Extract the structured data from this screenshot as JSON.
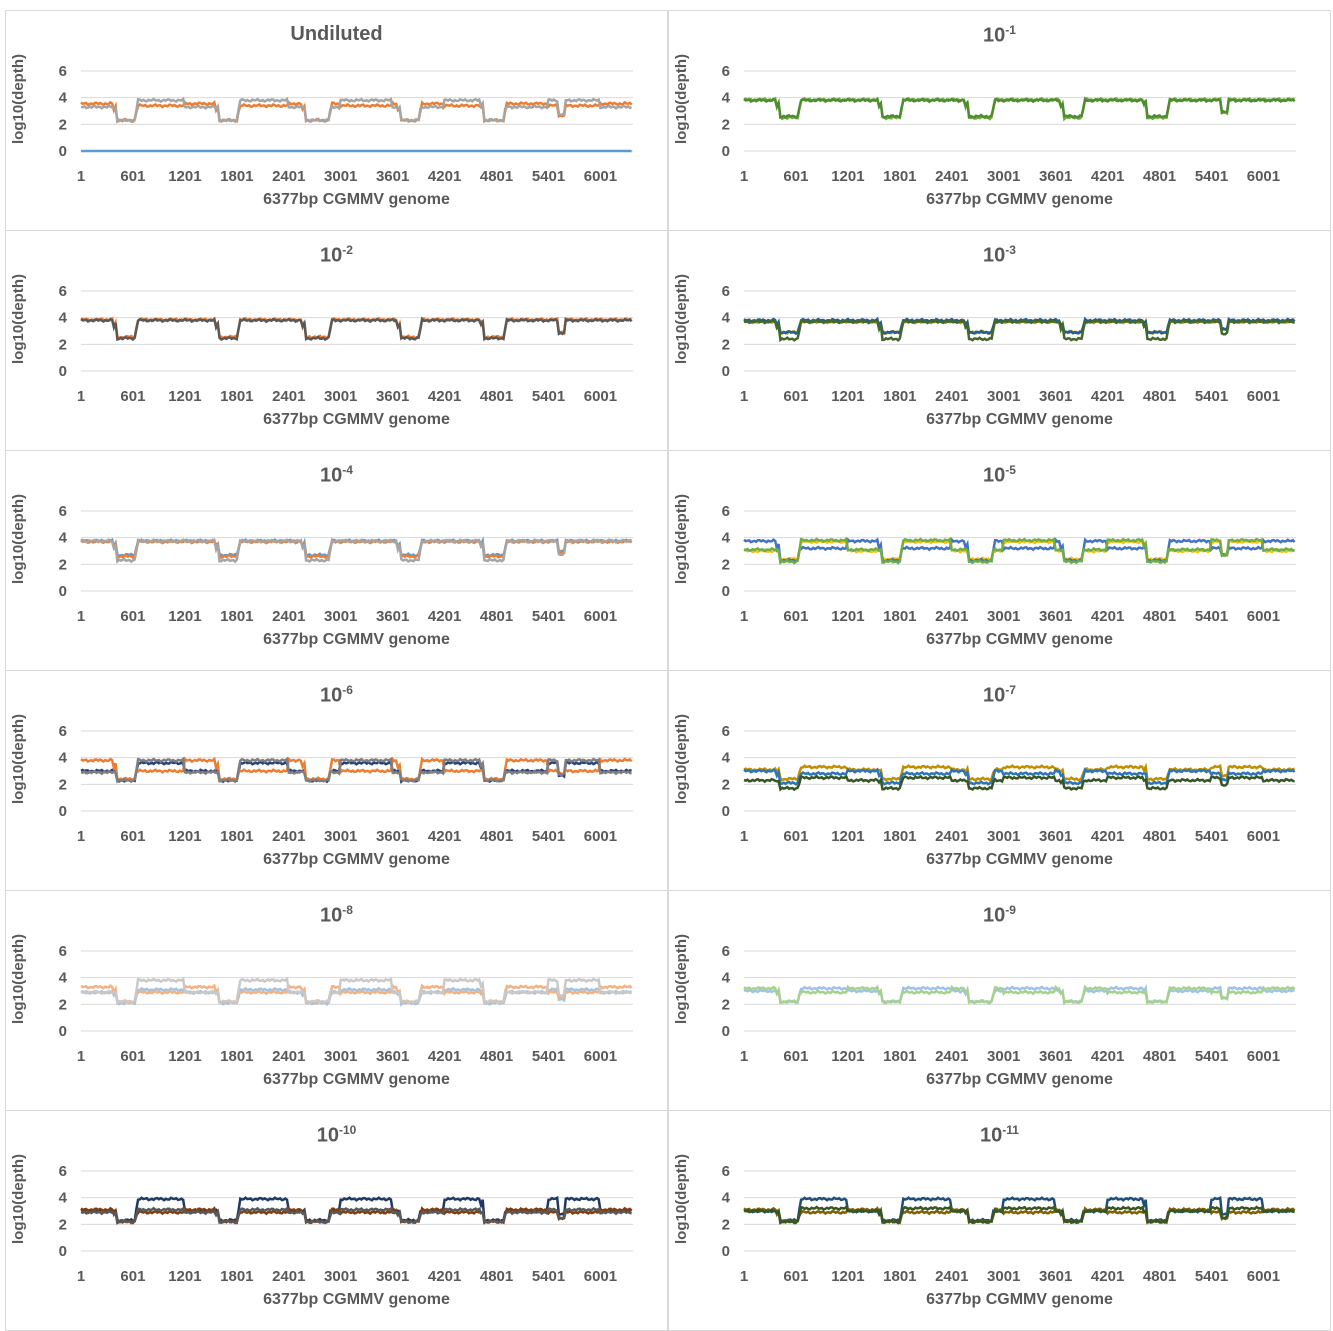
{
  "chart_data": [
    {
      "type": "line",
      "title": "Undiluted",
      "title_sup": "",
      "xlabel": "6377bp CGMMV genome",
      "ylabel": "log10(depth)",
      "xticks": [
        "1",
        "601",
        "1201",
        "1801",
        "2401",
        "3001",
        "3601",
        "4201",
        "4801",
        "5401",
        "6001"
      ],
      "yticks": [
        "0",
        "2",
        "4",
        "6"
      ],
      "ylim": [
        0,
        6
      ],
      "xlim": [
        1,
        6377
      ],
      "grid": true,
      "series": [
        {
          "color": "#5b9bd5",
          "flat": 0
        },
        {
          "color": "#ed7d31",
          "low": 2.3,
          "high": 3.55,
          "mid": 3.4
        },
        {
          "color": "#a5a5a5",
          "low": 2.3,
          "high": 3.8,
          "mid": 3.3
        }
      ]
    },
    {
      "type": "line",
      "title": "10",
      "title_sup": "-1",
      "xlabel": "6377bp CGMMV genome",
      "ylabel": "log10(depth)",
      "xticks": [
        "1",
        "601",
        "1201",
        "1801",
        "2401",
        "3001",
        "3601",
        "4201",
        "4801",
        "5401",
        "6001"
      ],
      "yticks": [
        "0",
        "2",
        "4",
        "6"
      ],
      "ylim": [
        0,
        6
      ],
      "xlim": [
        1,
        6377
      ],
      "grid": true,
      "series": [
        {
          "color": "#70ad47",
          "low": 2.5,
          "high": 3.85
        },
        {
          "color": "#4f8c2e",
          "low": 2.6,
          "high": 3.8
        }
      ]
    },
    {
      "type": "line",
      "title": "10",
      "title_sup": "-2",
      "xlabel": "6377bp CGMMV genome",
      "ylabel": "log10(depth)",
      "xticks": [
        "1",
        "601",
        "1201",
        "1801",
        "2401",
        "3001",
        "3601",
        "4201",
        "4801",
        "5401",
        "6001"
      ],
      "yticks": [
        "0",
        "2",
        "4",
        "6"
      ],
      "ylim": [
        0,
        6
      ],
      "xlim": [
        1,
        6377
      ],
      "grid": true,
      "series": [
        {
          "color": "#ed7d31",
          "low": 2.55,
          "high": 3.85
        },
        {
          "color": "#595959",
          "low": 2.45,
          "high": 3.8
        }
      ]
    },
    {
      "type": "line",
      "title": "10",
      "title_sup": "-3",
      "xlabel": "6377bp CGMMV genome",
      "ylabel": "log10(depth)",
      "xticks": [
        "1",
        "601",
        "1201",
        "1801",
        "2401",
        "3001",
        "3601",
        "4201",
        "4801",
        "5401",
        "6001"
      ],
      "yticks": [
        "0",
        "2",
        "4",
        "6"
      ],
      "ylim": [
        0,
        6
      ],
      "xlim": [
        1,
        6377
      ],
      "grid": true,
      "series": [
        {
          "color": "#bf8f00",
          "low": 2.9,
          "high": 3.7
        },
        {
          "color": "#255e91",
          "low": 2.9,
          "high": 3.8
        },
        {
          "color": "#43682b",
          "low": 2.4,
          "high": 3.7
        }
      ]
    },
    {
      "type": "line",
      "title": "10",
      "title_sup": "-4",
      "xlabel": "6377bp CGMMV genome",
      "ylabel": "log10(depth)",
      "xticks": [
        "1",
        "601",
        "1201",
        "1801",
        "2401",
        "3001",
        "3601",
        "4201",
        "4801",
        "5401",
        "6001"
      ],
      "yticks": [
        "0",
        "2",
        "4",
        "6"
      ],
      "ylim": [
        0,
        6
      ],
      "xlim": [
        1,
        6377
      ],
      "grid": true,
      "series": [
        {
          "color": "#5b9bd5",
          "low": 2.7,
          "high": 3.75
        },
        {
          "color": "#ed7d31",
          "low": 2.6,
          "high": 3.7
        },
        {
          "color": "#a5a5a5",
          "low": 2.3,
          "high": 3.75
        }
      ]
    },
    {
      "type": "line",
      "title": "10",
      "title_sup": "-5",
      "xlabel": "6377bp CGMMV genome",
      "ylabel": "log10(depth)",
      "xticks": [
        "1",
        "601",
        "1201",
        "1801",
        "2401",
        "3001",
        "3601",
        "4201",
        "4801",
        "5401",
        "6001"
      ],
      "yticks": [
        "0",
        "2",
        "4",
        "6"
      ],
      "ylim": [
        0,
        6
      ],
      "xlim": [
        1,
        6377
      ],
      "grid": true,
      "series": [
        {
          "color": "#ffc000",
          "low": 2.4,
          "high": 3.7,
          "mid": 3.0
        },
        {
          "color": "#4472c4",
          "low": 2.3,
          "high": 3.75,
          "mid": 3.2
        },
        {
          "color": "#70ad47",
          "low": 2.2,
          "high": 3.8,
          "mid": 3.1
        }
      ]
    },
    {
      "type": "line",
      "title": "10",
      "title_sup": "-6",
      "xlabel": "6377bp CGMMV genome",
      "ylabel": "log10(depth)",
      "xticks": [
        "1",
        "601",
        "1201",
        "1801",
        "2401",
        "3001",
        "3601",
        "4201",
        "4801",
        "5401",
        "6001"
      ],
      "yticks": [
        "0",
        "2",
        "4",
        "6"
      ],
      "ylim": [
        0,
        6
      ],
      "xlim": [
        1,
        6377
      ],
      "grid": true,
      "series": [
        {
          "color": "#264478",
          "low": 2.3,
          "high": 3.6,
          "mid": 3.0
        },
        {
          "color": "#ed7d31",
          "low": 2.4,
          "high": 3.8,
          "mid": 3.0
        },
        {
          "color": "#7f7f7f",
          "low": 2.3,
          "high": 3.8,
          "mid": 2.9
        }
      ]
    },
    {
      "type": "line",
      "title": "10",
      "title_sup": "-7",
      "xlabel": "6377bp CGMMV genome",
      "ylabel": "log10(depth)",
      "xticks": [
        "1",
        "601",
        "1201",
        "1801",
        "2401",
        "3001",
        "3601",
        "4201",
        "4801",
        "5401",
        "6001"
      ],
      "yticks": [
        "0",
        "2",
        "4",
        "6"
      ],
      "ylim": [
        0,
        6
      ],
      "xlim": [
        1,
        6377
      ],
      "grid": true,
      "series": [
        {
          "color": "#bf8f00",
          "low": 2.4,
          "high": 3.3,
          "mid": 3.1
        },
        {
          "color": "#2e75b6",
          "low": 2.1,
          "high": 3.0,
          "mid": 2.8
        },
        {
          "color": "#375623",
          "low": 1.7,
          "high": 2.5,
          "mid": 2.3
        }
      ]
    },
    {
      "type": "line",
      "title": "10",
      "title_sup": "-8",
      "xlabel": "6377bp CGMMV genome",
      "ylabel": "log10(depth)",
      "xticks": [
        "1",
        "601",
        "1201",
        "1801",
        "2401",
        "3001",
        "3601",
        "4201",
        "4801",
        "5401",
        "6001"
      ],
      "yticks": [
        "0",
        "2",
        "4",
        "6"
      ],
      "ylim": [
        0,
        6
      ],
      "xlim": [
        1,
        6377
      ],
      "grid": true,
      "series": [
        {
          "color": "#9dc3e6",
          "low": 2.1,
          "high": 3.1,
          "mid": 2.9
        },
        {
          "color": "#f4b183",
          "low": 2.2,
          "high": 3.3,
          "mid": 2.9
        },
        {
          "color": "#c9c9c9",
          "low": 2.2,
          "high": 3.8,
          "mid": 2.9
        }
      ]
    },
    {
      "type": "line",
      "title": "10",
      "title_sup": "-9",
      "xlabel": "6377bp CGMMV genome",
      "ylabel": "log10(depth)",
      "xticks": [
        "1",
        "601",
        "1201",
        "1801",
        "2401",
        "3001",
        "3601",
        "4201",
        "4801",
        "5401",
        "6001"
      ],
      "yticks": [
        "0",
        "2",
        "4",
        "6"
      ],
      "ylim": [
        0,
        6
      ],
      "xlim": [
        1,
        6377
      ],
      "grid": true,
      "series": [
        {
          "color": "#9dc3e6",
          "low": 2.2,
          "high": 3.2,
          "mid": 3.0
        },
        {
          "color": "#a9d18e",
          "low": 2.2,
          "high": 3.2,
          "mid": 2.9
        }
      ]
    },
    {
      "type": "line",
      "title": "10",
      "title_sup": "-10",
      "xlabel": "6377bp CGMMV genome",
      "ylabel": "log10(depth)",
      "xticks": [
        "1",
        "601",
        "1201",
        "1801",
        "2401",
        "3001",
        "3601",
        "4201",
        "4801",
        "5401",
        "6001"
      ],
      "yticks": [
        "0",
        "2",
        "4",
        "6"
      ],
      "ylim": [
        0,
        6
      ],
      "xlim": [
        1,
        6377
      ],
      "grid": true,
      "series": [
        {
          "color": "#1f3864",
          "low": 2.3,
          "high": 3.9,
          "mid": 3.0
        },
        {
          "color": "#843c0c",
          "low": 2.2,
          "high": 3.1,
          "mid": 2.9
        },
        {
          "color": "#595959",
          "low": 2.2,
          "high": 3.1,
          "mid": 2.9
        }
      ]
    },
    {
      "type": "line",
      "title": "10",
      "title_sup": "-11",
      "xlabel": "6377bp CGMMV genome",
      "ylabel": "log10(depth)",
      "xticks": [
        "1",
        "601",
        "1201",
        "1801",
        "2401",
        "3001",
        "3601",
        "4201",
        "4801",
        "5401",
        "6001"
      ],
      "yticks": [
        "0",
        "2",
        "4",
        "6"
      ],
      "ylim": [
        0,
        6
      ],
      "xlim": [
        1,
        6377
      ],
      "grid": true,
      "series": [
        {
          "color": "#1f4e79",
          "low": 2.3,
          "high": 3.9,
          "mid": 3.0
        },
        {
          "color": "#806000",
          "low": 2.2,
          "high": 3.1,
          "mid": 2.9
        },
        {
          "color": "#375623",
          "low": 2.2,
          "high": 3.2,
          "mid": 3.0
        }
      ]
    }
  ]
}
